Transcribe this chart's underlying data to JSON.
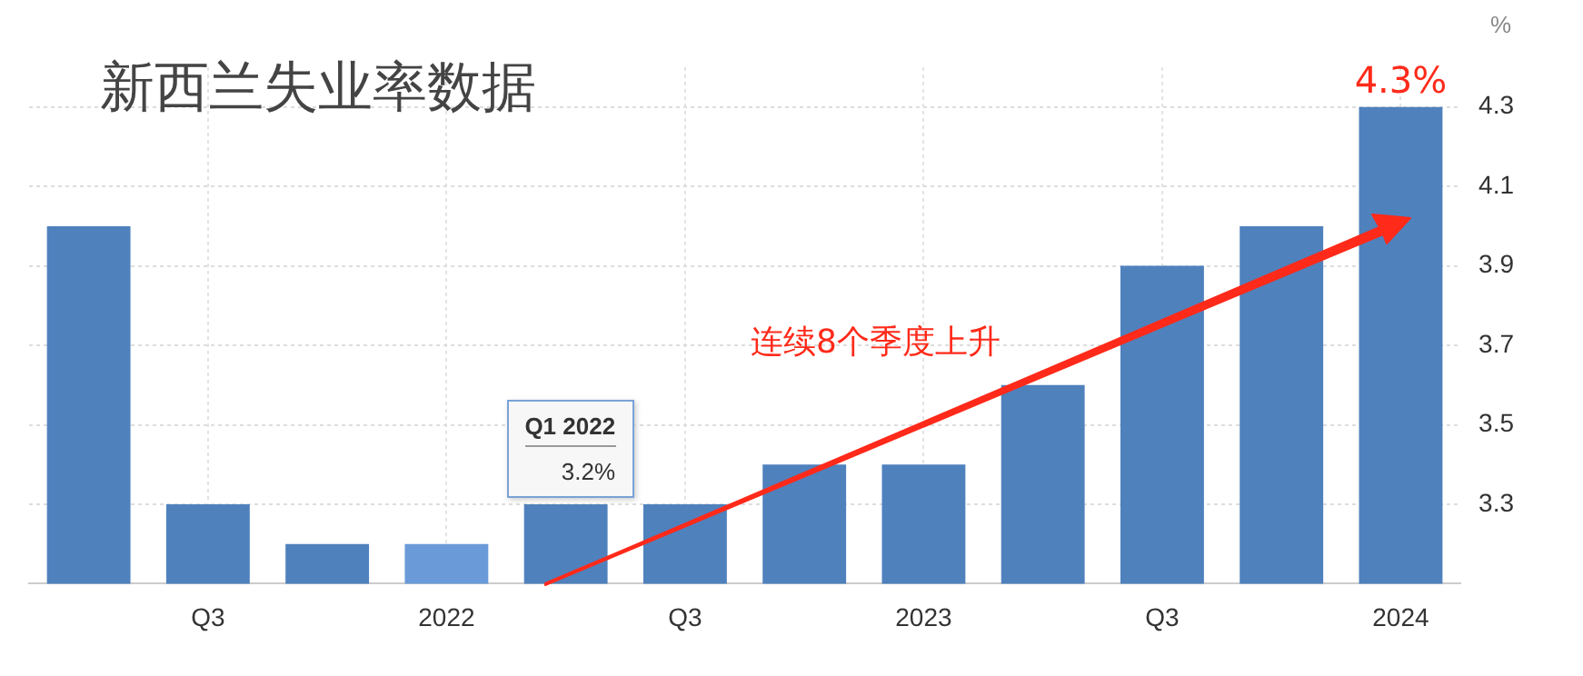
{
  "chart_data": {
    "type": "bar",
    "title": "新西兰失业率数据",
    "ylabel": "%",
    "categories": [
      null,
      "Q3",
      null,
      "2022",
      null,
      "Q3",
      null,
      "2023",
      null,
      "Q3",
      null,
      "2024"
    ],
    "values": [
      4.0,
      3.3,
      3.2,
      3.2,
      3.3,
      3.3,
      3.4,
      3.4,
      3.6,
      3.9,
      4.0,
      4.3
    ],
    "colors": [
      "#4f81bd",
      "#4f81bd",
      "#4f81bd",
      "#6a9bd8",
      "#4f81bd",
      "#4f81bd",
      "#4f81bd",
      "#4f81bd",
      "#4f81bd",
      "#4f81bd",
      "#4f81bd",
      "#4f81bd"
    ],
    "ylim": [
      3.1,
      4.4
    ],
    "yticks": [
      3.3,
      3.5,
      3.7,
      3.9,
      4.1,
      4.3
    ],
    "grid": true,
    "legend": false,
    "annotations": [
      {
        "text": "4.3%",
        "x": "2024",
        "y": 4.3
      },
      "连续8个季度上升",
      "Q1 2022",
      "3.2%"
    ]
  }
}
